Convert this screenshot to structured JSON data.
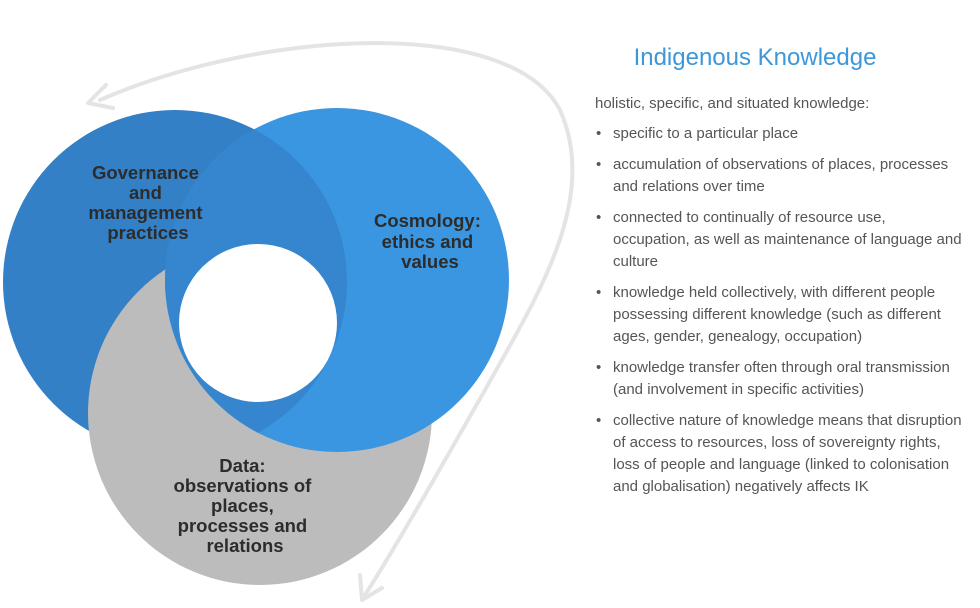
{
  "diagram": {
    "circles": [
      {
        "id": "governance",
        "label_lines": [
          "Governance",
          "and",
          "management",
          "practices"
        ],
        "color": "#3380c6"
      },
      {
        "id": "cosmology",
        "label_lines": [
          "Cosmology:",
          "ethics and",
          "values"
        ],
        "color": "#3a96e0"
      },
      {
        "id": "data",
        "label_lines": [
          "Data:",
          "observations of",
          "places,",
          "processes and",
          "relations"
        ],
        "color": "#bcbcbc"
      }
    ],
    "arrow_color": "#e4e4e4"
  },
  "panel": {
    "title": "Indigenous Knowledge",
    "intro": "holistic, specific, and situated knowledge:",
    "bullet_glyph": "•",
    "items": [
      {
        "lines": [
          "specific to a particular place"
        ]
      },
      {
        "lines": [
          "accumulation of observations of places, processes",
          "and relations over time"
        ]
      },
      {
        "lines": [
          "connected to continually of resource use,",
          "occupation, as well as maintenance of language and",
          "culture"
        ]
      },
      {
        "lines": [
          "knowledge held collectively, with different people",
          "possessing different knowledge (such as different",
          "ages, gender, genealogy, occupation)"
        ]
      },
      {
        "lines": [
          "knowledge transfer often through oral transmission",
          "(and involvement in specific activities)"
        ]
      },
      {
        "lines": [
          "collective nature of knowledge means that disruption",
          "of access to resources, loss of sovereignty rights,",
          "loss of people and language (linked to colonisation",
          "and globalisation) negatively affects IK"
        ]
      }
    ]
  }
}
